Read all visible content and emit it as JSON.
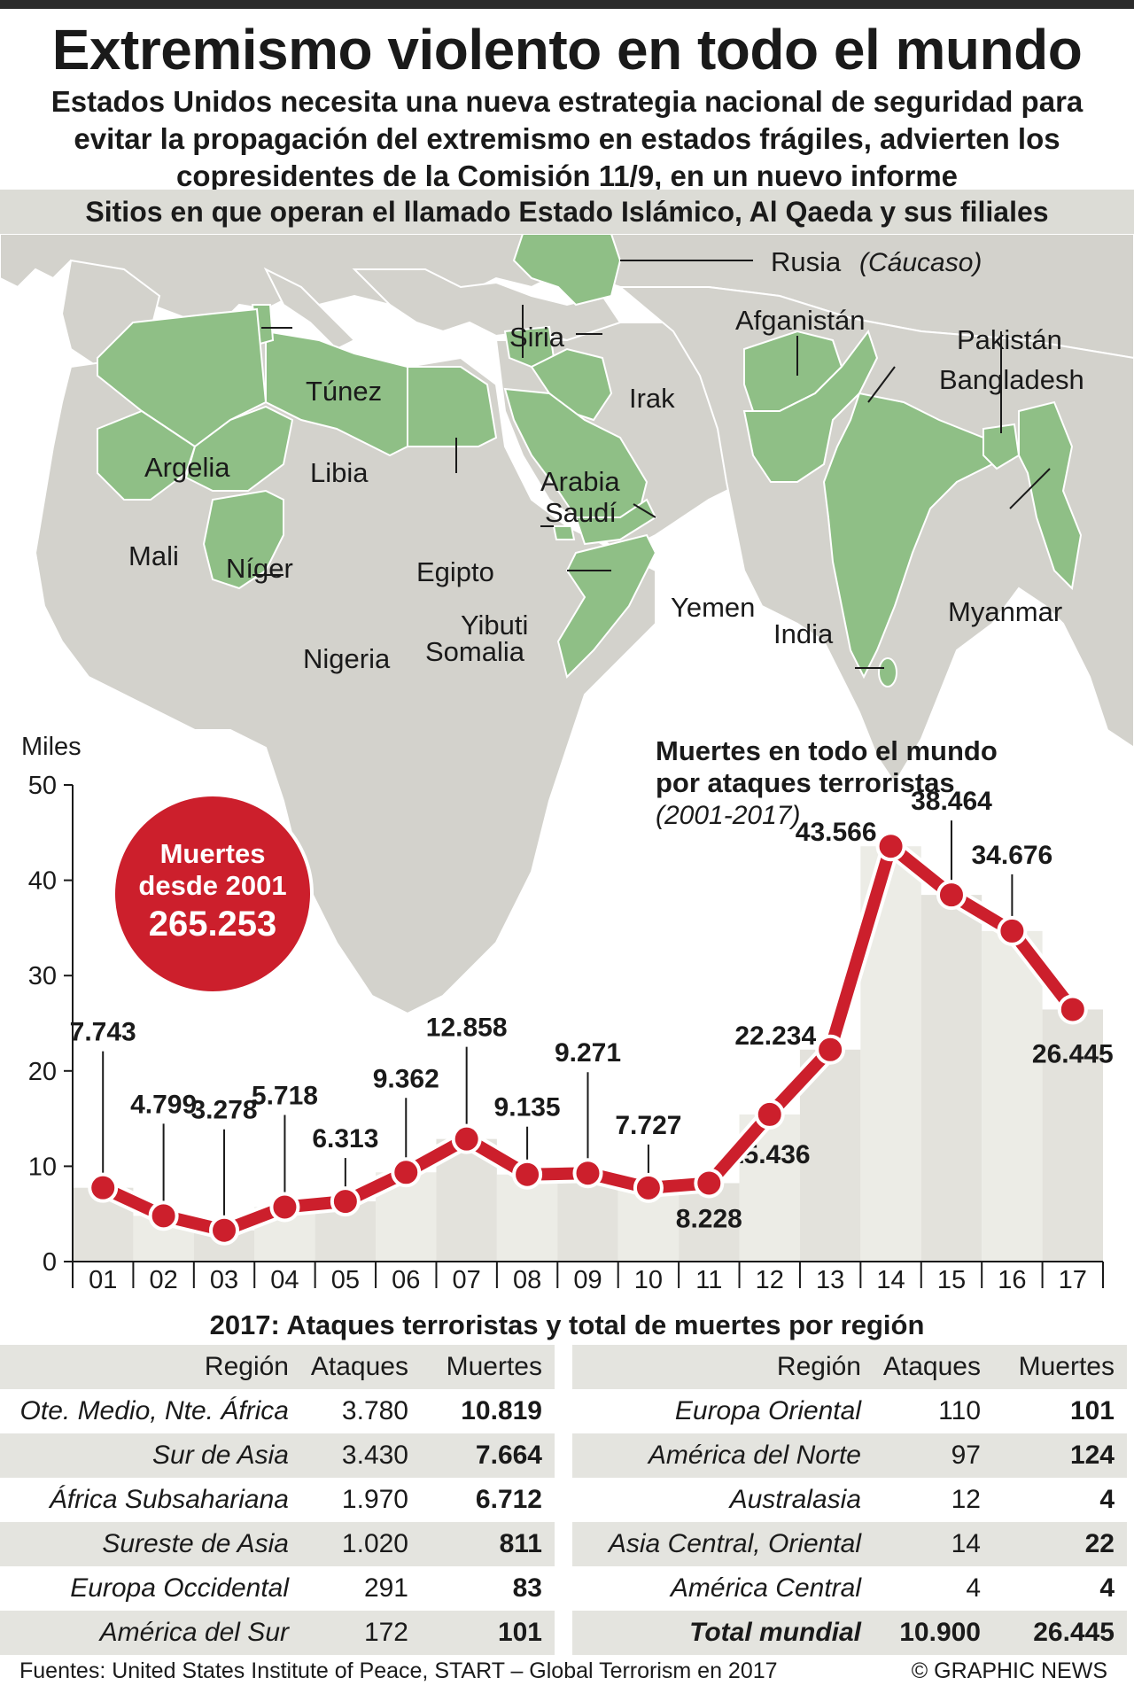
{
  "title": "Extremismo violento en todo el mundo",
  "subtitle": "Estados Unidos necesita una nueva estrategia nacional de seguridad para evitar la propagación del extremismo en estados frágiles, advierten los copresidentes de la Comisión 11/9, en un nuevo informe",
  "map": {
    "header": "Sitios en que operan el llamado Estado Islámico, Al Qaeda y sus filiales",
    "highlight_color": "#8fbf86",
    "land_color": "#d3d2cc",
    "sea_color": "#ffffff",
    "labels": {
      "rusia": "Rusia",
      "caucaso": "(Cáucaso)",
      "afganistan": "Afganistán",
      "pakistan": "Pakistán",
      "siria": "Siria",
      "bangladesh": "Bangladesh",
      "tunez": "Túnez",
      "irak": "Irak",
      "argelia": "Argelia",
      "libia": "Libia",
      "arabia1": "Arabia",
      "arabia2": "Saudí",
      "mali": "Mali",
      "niger": "Níger",
      "egipto": "Egipto",
      "yibuti": "Yibuti",
      "yemen": "Yemen",
      "india": "India",
      "myanmar": "Myanmar",
      "nigeria": "Nigeria",
      "somalia": "Somalia"
    }
  },
  "badge": {
    "line1": "Muertes",
    "line2": "desde 2001",
    "value": "265.253",
    "color": "#cc1f2c"
  },
  "chart_data": {
    "type": "line",
    "title": "Muertes en todo el mundo por ataques terroristas",
    "subtitle": "(2001-2017)",
    "ylabel": "Miles",
    "ylim": [
      0,
      50
    ],
    "yticks": [
      0,
      10,
      20,
      30,
      40,
      50
    ],
    "categories": [
      "01",
      "02",
      "03",
      "04",
      "05",
      "06",
      "07",
      "08",
      "09",
      "10",
      "11",
      "12",
      "13",
      "14",
      "15",
      "16",
      "17"
    ],
    "values": [
      7.743,
      4.799,
      3.278,
      5.718,
      6.313,
      9.362,
      12.858,
      9.135,
      9.271,
      7.727,
      8.228,
      15.436,
      22.234,
      43.566,
      38.464,
      34.676,
      26.445
    ],
    "value_labels": [
      "7.743",
      "4.799",
      "3.278",
      "5.718",
      "6.313",
      "9.362",
      "12.858",
      "9.135",
      "9.271",
      "7.727",
      "8.228",
      "15.436",
      "22.234",
      "43.566",
      "38.464",
      "34.676",
      "26.445"
    ],
    "line_color": "#cc1f2c",
    "fill_color": "#d9d8d0"
  },
  "table": {
    "title": "2017: Ataques terroristas y total de muertes por región",
    "headers": [
      "Región",
      "Ataques",
      "Muertes"
    ],
    "left": [
      [
        "Ote. Medio, Nte. África",
        "3.780",
        "10.819"
      ],
      [
        "Sur de Asia",
        "3.430",
        "7.664"
      ],
      [
        "África Subsahariana",
        "1.970",
        "6.712"
      ],
      [
        "Sureste de Asia",
        "1.020",
        "811"
      ],
      [
        "Europa Occidental",
        "291",
        "83"
      ],
      [
        "América del Sur",
        "172",
        "101"
      ]
    ],
    "right": [
      [
        "Europa Oriental",
        "110",
        "101"
      ],
      [
        "América del Norte",
        "97",
        "124"
      ],
      [
        "Australasia",
        "12",
        "4"
      ],
      [
        "Asia Central, Oriental",
        "14",
        "22"
      ],
      [
        "América Central",
        "4",
        "4"
      ],
      [
        "Total mundial",
        "10.900",
        "26.445"
      ]
    ]
  },
  "footer": {
    "sources": "Fuentes: United States Institute of Peace, START – Global Terrorism en 2017",
    "credit": "© GRAPHIC NEWS"
  }
}
